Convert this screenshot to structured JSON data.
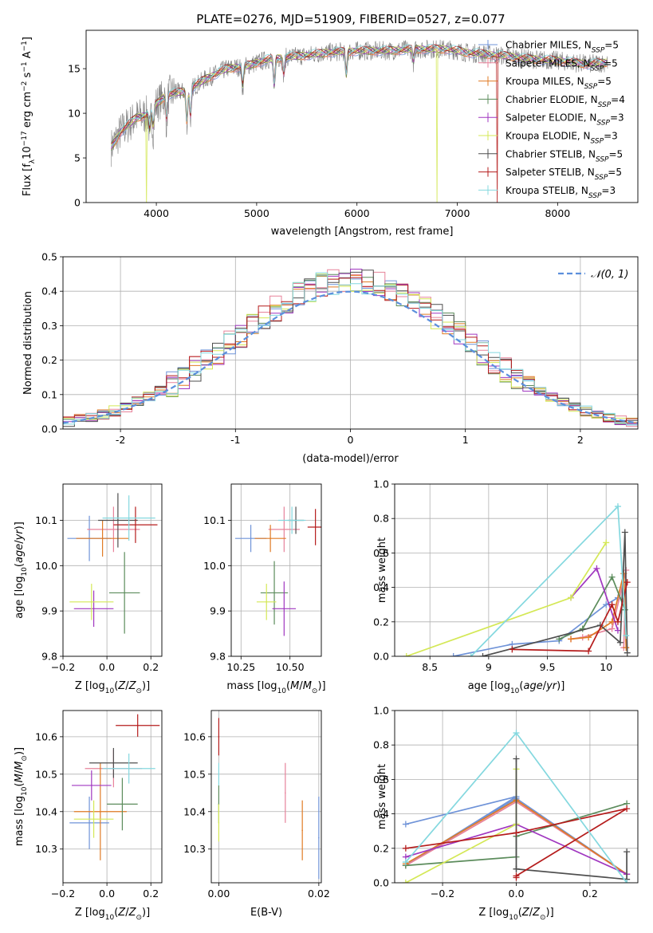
{
  "figure_title": "PLATE=0276, MJD=51909, FIBERID=0527, z=0.077",
  "colors": {
    "chabrier_miles": "#6f93d8",
    "salpeter_miles": "#e7829a",
    "kroupa_miles": "#e07b25",
    "chabrier_elodie": "#5c8c5c",
    "salpeter_elodie": "#a037c0",
    "kroupa_elodie": "#d4e856",
    "chabrier_stelib": "#4f4f4f",
    "salpeter_stelib": "#b51c1c",
    "kroupa_stelib": "#84d8df",
    "spectrum": "#808080",
    "normal": "#5b8fdc"
  },
  "chart_data": [
    {
      "id": "spectrum",
      "type": "line",
      "title": "PLATE=0276, MJD=51909, FIBERID=0527, z=0.077",
      "xlabel": "wavelength [Angstrom, rest frame]",
      "ylabel": "Flux [fλ10⁻¹⁷ erg cm⁻² s⁻¹ A⁻¹]",
      "xlim": [
        3300,
        8800
      ],
      "ylim": [
        0,
        19.3
      ],
      "xticks": [
        4000,
        5000,
        6000,
        7000,
        8000
      ],
      "yticks": [
        0,
        5,
        10,
        15
      ],
      "grid": false,
      "legend_position": "top-right",
      "legend": [
        "Chabrier MILES, N_SSP=5",
        "Salpeter MILES, N_SSP=5",
        "Kroupa MILES, N_SSP=5",
        "Chabrier ELODIE, N_SSP=4",
        "Salpeter ELODIE, N_SSP=3",
        "Kroupa ELODIE, N_SSP=3",
        "Chabrier STELIB, N_SSP=5",
        "Salpeter STELIB, N_SSP=5",
        "Kroupa STELIB, N_SSP=3"
      ],
      "continuum": [
        [
          3550,
          6.2
        ],
        [
          3650,
          8.0
        ],
        [
          3800,
          9.5
        ],
        [
          3900,
          9.8
        ],
        [
          4000,
          11.0
        ],
        [
          4100,
          12.1
        ],
        [
          4300,
          12.5
        ],
        [
          4500,
          13.9
        ],
        [
          4700,
          15.0
        ],
        [
          4900,
          15.3
        ],
        [
          5100,
          16.0
        ],
        [
          5300,
          16.3
        ],
        [
          5500,
          16.5
        ],
        [
          5700,
          16.8
        ],
        [
          6000,
          17.0
        ],
        [
          6300,
          17.0
        ],
        [
          6600,
          17.2
        ],
        [
          6900,
          17.2
        ],
        [
          7100,
          16.8
        ],
        [
          7300,
          16.6
        ],
        [
          7500,
          16.4
        ],
        [
          7700,
          16.1
        ],
        [
          8000,
          15.9
        ],
        [
          8300,
          15.5
        ],
        [
          8500,
          15.7
        ]
      ],
      "absorption_lines": [
        [
          3934,
          2.5
        ],
        [
          3969,
          2.5
        ],
        [
          4102,
          3.0
        ],
        [
          4304,
          4.0
        ],
        [
          4340,
          3.5
        ],
        [
          4861,
          2.5
        ],
        [
          5175,
          3.5
        ],
        [
          5270,
          2.0
        ],
        [
          5893,
          3.0
        ],
        [
          6563,
          1.5
        ]
      ],
      "model_dropouts": [
        {
          "series": "kroupa_elodie",
          "x": 3900
        },
        {
          "series": "kroupa_elodie",
          "x": 6800
        },
        {
          "series": "salpeter_stelib",
          "x": 7400
        }
      ]
    },
    {
      "id": "residuals",
      "type": "histogram",
      "xlabel": "(data-model)/error",
      "ylabel": "Normed distribution",
      "xlim": [
        -2.5,
        2.5
      ],
      "ylim": [
        0,
        0.5
      ],
      "xticks": [
        -2,
        -1,
        0,
        1,
        2
      ],
      "yticks": [
        0.0,
        0.1,
        0.2,
        0.3,
        0.4,
        0.5
      ],
      "grid": true,
      "legend_position": "top-right",
      "legend": [
        "𝒩(0, 1)"
      ],
      "bin_width": 0.1
    },
    {
      "id": "age_vs_z",
      "type": "scatter",
      "xlabel": "Z [log₁₀(Z/Z⊙)]",
      "ylabel": "age  [log₁₀(age/yr)]",
      "xlim": [
        -0.2,
        0.25
      ],
      "ylim": [
        9.8,
        10.18
      ],
      "xticks": [
        -0.2,
        0.0,
        0.2
      ],
      "xticklabels": [
        "−0.2",
        "0.0",
        "0.2"
      ],
      "yticks": [
        9.8,
        9.9,
        10.0,
        10.1
      ],
      "grid": true,
      "points": [
        {
          "series": "chabrier_miles",
          "x": -0.08,
          "y": 10.06,
          "xerr": 0.1,
          "yerr": 0.05
        },
        {
          "series": "salpeter_miles",
          "x": 0.03,
          "y": 10.08,
          "xerr": 0.12,
          "yerr": 0.05
        },
        {
          "series": "kroupa_miles",
          "x": -0.02,
          "y": 10.06,
          "xerr": 0.12,
          "yerr": 0.04
        },
        {
          "series": "chabrier_elodie",
          "x": 0.08,
          "y": 9.94,
          "xerr": 0.07,
          "yerr": 0.09
        },
        {
          "series": "salpeter_elodie",
          "x": -0.06,
          "y": 9.905,
          "xerr": 0.09,
          "yerr": 0.04
        },
        {
          "series": "kroupa_elodie",
          "x": -0.07,
          "y": 9.92,
          "xerr": 0.1,
          "yerr": 0.04
        },
        {
          "series": "chabrier_stelib",
          "x": 0.05,
          "y": 10.1,
          "xerr": 0.09,
          "yerr": 0.06
        },
        {
          "series": "salpeter_stelib",
          "x": 0.13,
          "y": 10.09,
          "xerr": 0.1,
          "yerr": 0.04
        },
        {
          "series": "kroupa_stelib",
          "x": 0.1,
          "y": 10.105,
          "xerr": 0.12,
          "yerr": 0.05
        }
      ]
    },
    {
      "id": "age_vs_mass",
      "type": "scatter",
      "xlabel": "mass [log₁₀(M/M⊙)]",
      "ylabel": "",
      "xlim": [
        10.2,
        10.66
      ],
      "ylim": [
        9.8,
        10.18
      ],
      "xticks": [
        10.25,
        10.5
      ],
      "xticklabels": [
        "10.25",
        "10.50"
      ],
      "yticks": [
        9.8,
        9.9,
        10.0,
        10.1
      ],
      "grid": true,
      "points": [
        {
          "series": "chabrier_miles",
          "x": 10.3,
          "y": 10.06,
          "xerr": 0.08,
          "yerr": 0.03
        },
        {
          "series": "salpeter_miles",
          "x": 10.47,
          "y": 10.08,
          "xerr": 0.08,
          "yerr": 0.05
        },
        {
          "series": "kroupa_miles",
          "x": 10.4,
          "y": 10.06,
          "xerr": 0.08,
          "yerr": 0.03
        },
        {
          "series": "chabrier_elodie",
          "x": 10.42,
          "y": 9.94,
          "xerr": 0.07,
          "yerr": 0.07
        },
        {
          "series": "salpeter_elodie",
          "x": 10.47,
          "y": 9.905,
          "xerr": 0.06,
          "yerr": 0.06
        },
        {
          "series": "kroupa_elodie",
          "x": 10.38,
          "y": 9.92,
          "xerr": 0.05,
          "yerr": 0.04
        },
        {
          "series": "chabrier_stelib",
          "x": 10.53,
          "y": 10.1,
          "xerr": 0.04,
          "yerr": 0.03
        },
        {
          "series": "salpeter_stelib",
          "x": 10.63,
          "y": 10.085,
          "xerr": 0.04,
          "yerr": 0.04
        },
        {
          "series": "kroupa_stelib",
          "x": 10.51,
          "y": 10.1,
          "xerr": 0.07,
          "yerr": 0.03
        }
      ]
    },
    {
      "id": "weight_vs_age",
      "type": "line",
      "xlabel": "age  [log₁₀(age/yr)]",
      "ylabel": "mass weight",
      "xlim": [
        8.2,
        10.27
      ],
      "ylim": [
        0,
        1.0
      ],
      "xticks": [
        8.5,
        9.0,
        9.5,
        10.0
      ],
      "yticks": [
        0.0,
        0.2,
        0.4,
        0.6,
        0.8,
        1.0
      ],
      "grid": true,
      "series": [
        {
          "series": "chabrier_miles",
          "x": [
            8.7,
            9.2,
            9.6,
            10.0,
            10.1
          ],
          "y": [
            0.0,
            0.07,
            0.09,
            0.3,
            0.34
          ]
        },
        {
          "series": "salpeter_miles",
          "x": [
            9.7,
            9.8,
            10.05,
            10.17,
            10.15
          ],
          "y": [
            0.1,
            0.11,
            0.16,
            0.5,
            0.05
          ]
        },
        {
          "series": "kroupa_miles",
          "x": [
            9.7,
            9.85,
            10.05,
            10.15,
            10.17
          ],
          "y": [
            0.1,
            0.11,
            0.2,
            0.48,
            0.05
          ]
        },
        {
          "series": "chabrier_elodie",
          "x": [
            9.6,
            9.8,
            10.05,
            10.16
          ],
          "y": [
            0.1,
            0.16,
            0.46,
            0.27
          ]
        },
        {
          "series": "salpeter_elodie",
          "x": [
            9.7,
            9.92,
            10.1
          ],
          "y": [
            0.34,
            0.51,
            0.15
          ]
        },
        {
          "series": "kroupa_elodie",
          "x": [
            8.3,
            9.7,
            10.0
          ],
          "y": [
            0.0,
            0.34,
            0.66
          ]
        },
        {
          "series": "chabrier_stelib",
          "x": [
            8.95,
            9.95,
            10.12,
            10.16,
            10.18
          ],
          "y": [
            0.0,
            0.18,
            0.08,
            0.72,
            0.02
          ]
        },
        {
          "series": "salpeter_stelib",
          "x": [
            9.2,
            9.85,
            10.05,
            10.1,
            10.18
          ],
          "y": [
            0.04,
            0.03,
            0.3,
            0.2,
            0.43
          ]
        },
        {
          "series": "kroupa_stelib",
          "x": [
            8.85,
            10.1,
            10.17
          ],
          "y": [
            0.0,
            0.87,
            0.12
          ]
        }
      ]
    },
    {
      "id": "mass_vs_z",
      "type": "scatter",
      "xlabel": "Z [log₁₀(Z/Z⊙)]",
      "ylabel": "mass [log₁₀(M/M⊙)]",
      "xlim": [
        -0.2,
        0.25
      ],
      "ylim": [
        10.21,
        10.67
      ],
      "xticks": [
        -0.2,
        0.0,
        0.2
      ],
      "xticklabels": [
        "−0.2",
        "0.0",
        "0.2"
      ],
      "yticks": [
        10.3,
        10.4,
        10.5,
        10.6
      ],
      "grid": true,
      "points": [
        {
          "series": "chabrier_miles",
          "x": -0.08,
          "y": 10.37,
          "xerr": 0.09,
          "yerr": 0.07
        },
        {
          "series": "salpeter_miles",
          "x": 0.03,
          "y": 10.515,
          "xerr": 0.13,
          "yerr": 0.05
        },
        {
          "series": "kroupa_miles",
          "x": -0.03,
          "y": 10.4,
          "xerr": 0.12,
          "yerr": 0.13
        },
        {
          "series": "chabrier_elodie",
          "x": 0.07,
          "y": 10.42,
          "xerr": 0.07,
          "yerr": 0.07
        },
        {
          "series": "salpeter_elodie",
          "x": -0.07,
          "y": 10.47,
          "xerr": 0.09,
          "yerr": 0.04
        },
        {
          "series": "kroupa_elodie",
          "x": -0.06,
          "y": 10.38,
          "xerr": 0.09,
          "yerr": 0.05
        },
        {
          "series": "chabrier_stelib",
          "x": 0.03,
          "y": 10.53,
          "xerr": 0.11,
          "yerr": 0.04
        },
        {
          "series": "salpeter_stelib",
          "x": 0.14,
          "y": 10.63,
          "xerr": 0.1,
          "yerr": 0.03
        },
        {
          "series": "kroupa_stelib",
          "x": 0.1,
          "y": 10.515,
          "xerr": 0.12,
          "yerr": 0.04
        }
      ]
    },
    {
      "id": "mass_vs_ebv",
      "type": "scatter",
      "xlabel": "E(B-V)",
      "ylabel": "",
      "xlim": [
        -0.0015,
        0.0205
      ],
      "ylim": [
        10.21,
        10.67
      ],
      "xticks": [
        0.0,
        0.02
      ],
      "xticklabels": [
        "0.00",
        "0.02"
      ],
      "yticks": [
        10.3,
        10.4,
        10.5,
        10.6
      ],
      "grid": true,
      "points": [
        {
          "series": "chabrier_miles",
          "x": 0.02,
          "y": 10.33,
          "xerr": 0,
          "yerr": 0.11
        },
        {
          "series": "salpeter_miles",
          "x": 0.0133,
          "y": 10.45,
          "xerr": 0,
          "yerr": 0.08
        },
        {
          "series": "kroupa_miles",
          "x": 0.0167,
          "y": 10.35,
          "xerr": 0,
          "yerr": 0.08
        },
        {
          "series": "chabrier_elodie",
          "x": 0.0,
          "y": 10.42,
          "xerr": 0,
          "yerr": 0.05
        },
        {
          "series": "kroupa_elodie",
          "x": 0.0,
          "y": 10.37,
          "xerr": 0,
          "yerr": 0.05
        },
        {
          "series": "kroupa_stelib",
          "x": 0.0,
          "y": 10.5,
          "xerr": 0,
          "yerr": 0.03
        },
        {
          "series": "salpeter_stelib",
          "x": 0.0,
          "y": 10.6,
          "xerr": 0,
          "yerr": 0.05
        }
      ]
    },
    {
      "id": "weight_vs_z",
      "type": "line",
      "xlabel": "Z [log₁₀(Z/Z⊙)]",
      "ylabel": "mass weight",
      "xlim": [
        -0.33,
        0.33
      ],
      "ylim": [
        0,
        1.0
      ],
      "xticks": [
        -0.2,
        0.0,
        0.2
      ],
      "xticklabels": [
        "−0.2",
        "0.0",
        "0.2"
      ],
      "yticks": [
        0.0,
        0.2,
        0.4,
        0.6,
        0.8,
        1.0
      ],
      "grid": true,
      "series": [
        {
          "series": "chabrier_miles",
          "x": [
            -0.3,
            0.0,
            -0.3,
            0.0,
            0.3
          ],
          "y": [
            0.34,
            0.5,
            0.1,
            0.49,
            0.05
          ]
        },
        {
          "series": "salpeter_miles",
          "x": [
            -0.3,
            0.0,
            0.3
          ],
          "y": [
            0.1,
            0.47,
            0.05
          ]
        },
        {
          "series": "kroupa_miles",
          "x": [
            -0.3,
            0.0,
            0.3
          ],
          "y": [
            0.11,
            0.48,
            0.05
          ]
        },
        {
          "series": "chabrier_elodie",
          "x": [
            -0.3,
            0.0,
            0.0,
            0.3
          ],
          "y": [
            0.1,
            0.15,
            0.27,
            0.46
          ]
        },
        {
          "series": "salpeter_elodie",
          "x": [
            -0.3,
            0.0,
            0.3
          ],
          "y": [
            0.15,
            0.34,
            0.05
          ]
        },
        {
          "series": "kroupa_elodie",
          "x": [
            -0.3,
            0.0,
            0.0
          ],
          "y": [
            0.0,
            0.34,
            0.66
          ]
        },
        {
          "series": "chabrier_stelib",
          "x": [
            0.0,
            0.0,
            0.0,
            0.3,
            0.3
          ],
          "y": [
            0.72,
            0.08,
            0.08,
            0.02,
            0.18
          ]
        },
        {
          "series": "salpeter_stelib",
          "x": [
            -0.3,
            0.0,
            0.3,
            0.0,
            0.0
          ],
          "y": [
            0.2,
            0.29,
            0.43,
            0.04,
            0.03
          ]
        },
        {
          "series": "kroupa_stelib",
          "x": [
            -0.3,
            0.0,
            0.3
          ],
          "y": [
            0.12,
            0.87,
            0.0
          ]
        }
      ]
    }
  ]
}
